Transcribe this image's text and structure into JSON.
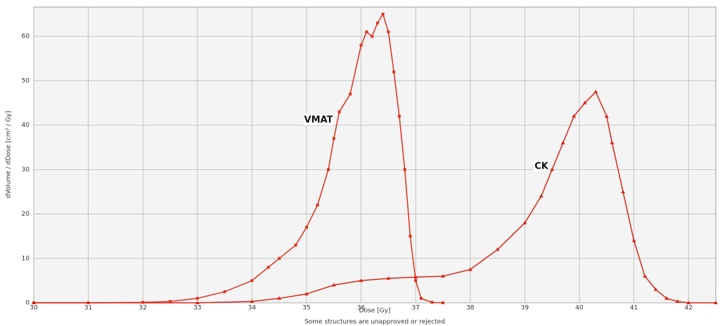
{
  "chart_data": {
    "type": "line",
    "xlabel": "Dose [Gy]",
    "ylabel": "dVolume / dDose [cm³ / Gy]",
    "footer": "Some structures are unapproved or rejected",
    "annotations": [
      "VMAT",
      "CK"
    ],
    "xlim": [
      30,
      42.5
    ],
    "ylim": [
      0,
      66.6
    ],
    "xticks": [
      30,
      31,
      32,
      33,
      34,
      35,
      36,
      37,
      38,
      39,
      40,
      41,
      42
    ],
    "yticks": [
      0,
      10,
      20,
      30,
      40,
      50,
      60
    ],
    "grid": true,
    "series": [
      {
        "name": "VMAT",
        "color": "#e0301e",
        "marker": "square",
        "x": [
          30,
          31,
          32,
          32.5,
          33,
          33.5,
          34,
          34.3,
          34.5,
          34.8,
          35,
          35.2,
          35.4,
          35.5,
          35.6,
          35.8,
          36,
          36.1,
          36.2,
          36.3,
          36.4,
          36.5,
          36.6,
          36.7,
          36.8,
          36.9,
          37,
          37.1,
          37.3,
          37.5
        ],
        "values": [
          0,
          0,
          0.1,
          0.3,
          1,
          2.5,
          5,
          8,
          10,
          13,
          17,
          22,
          30,
          37,
          43,
          47,
          58,
          61,
          60,
          63,
          65,
          61,
          52,
          42,
          30,
          15,
          5,
          1,
          0.1,
          0
        ]
      },
      {
        "name": "CK",
        "color": "#d8281a",
        "marker": "triangle",
        "x": [
          30,
          33,
          34,
          34.5,
          35,
          35.5,
          36,
          36.5,
          37,
          37.5,
          38,
          38.5,
          39,
          39.3,
          39.5,
          39.7,
          39.9,
          40.1,
          40.3,
          40.5,
          40.6,
          40.8,
          41,
          41.2,
          41.4,
          41.6,
          41.8,
          42,
          42.5
        ],
        "values": [
          0,
          0,
          0.3,
          1,
          2,
          4,
          5,
          5.5,
          5.8,
          6,
          7.5,
          12,
          18,
          24,
          30,
          36,
          42,
          45,
          47.5,
          42,
          36,
          25,
          14,
          6,
          3,
          1,
          0.3,
          0,
          0
        ]
      }
    ]
  }
}
